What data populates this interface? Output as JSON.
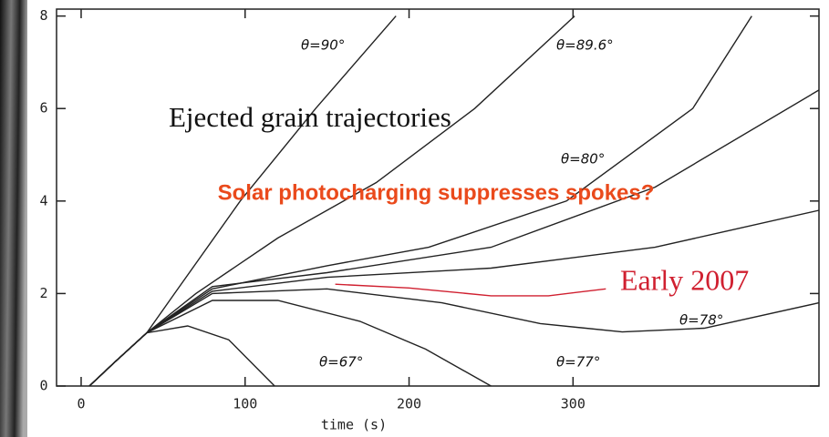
{
  "chart_data": {
    "type": "line",
    "annotations": [
      "Ejected grain trajectories",
      "Solar photocharging suppresses spokes?",
      "Early 2007"
    ],
    "xlabel": "time (s)",
    "xlim": [
      -15,
      450
    ],
    "ylim": [
      0,
      8.15
    ],
    "xticks": [
      0,
      100,
      200,
      300
    ],
    "yticks": [
      0,
      2,
      4,
      6,
      8
    ],
    "series": [
      {
        "name": "θ=90°",
        "color": "#222222",
        "x": [
          5,
          20,
          40,
          57,
          97,
          143,
          192
        ],
        "values": [
          0,
          0.5,
          1.15,
          2,
          4,
          6,
          8
        ]
      },
      {
        "name": "θ=89.6°",
        "color": "#222222",
        "x": [
          5,
          20,
          40,
          70,
          120,
          180,
          240,
          301
        ],
        "values": [
          0,
          0.5,
          1.15,
          2,
          3.2,
          4.4,
          6,
          8
        ]
      },
      {
        "name": "θ=80°",
        "color": "#222222",
        "x": [
          5,
          20,
          40,
          80,
          150,
          212,
          296,
          373,
          409
        ],
        "values": [
          0,
          0.5,
          1.15,
          2.1,
          2.6,
          3.0,
          4,
          6,
          8
        ]
      },
      {
        "color": "#222222",
        "x": [
          5,
          20,
          40,
          80,
          150,
          250,
          350,
          450
        ],
        "values": [
          0,
          0.5,
          1.15,
          2.15,
          2.45,
          3.0,
          4.3,
          6.4
        ]
      },
      {
        "color": "#222222",
        "x": [
          5,
          20,
          40,
          80,
          150,
          250,
          350,
          450
        ],
        "values": [
          0,
          0.5,
          1.15,
          2.05,
          2.35,
          2.55,
          3.0,
          3.8
        ]
      },
      {
        "name": "θ=78°",
        "color": "#222222",
        "x": [
          5,
          20,
          40,
          80,
          150,
          220,
          280,
          330,
          380,
          450
        ],
        "values": [
          0,
          0.5,
          1.15,
          2.0,
          2.1,
          1.8,
          1.35,
          1.17,
          1.25,
          1.8
        ]
      },
      {
        "name": "θ=77°",
        "color": "#222222",
        "x": [
          5,
          20,
          40,
          80,
          120,
          170,
          210,
          250
        ],
        "values": [
          0,
          0.5,
          1.15,
          1.85,
          1.85,
          1.4,
          0.8,
          0
        ]
      },
      {
        "name": "θ=67°",
        "color": "#222222",
        "x": [
          5,
          20,
          40,
          65,
          90,
          118
        ],
        "values": [
          0,
          0.5,
          1.15,
          1.3,
          1.0,
          0
        ]
      },
      {
        "color": "#d02030",
        "x": [
          155,
          200,
          250,
          285,
          320
        ],
        "values": [
          2.2,
          2.12,
          1.95,
          1.95,
          2.1
        ]
      }
    ]
  }
}
